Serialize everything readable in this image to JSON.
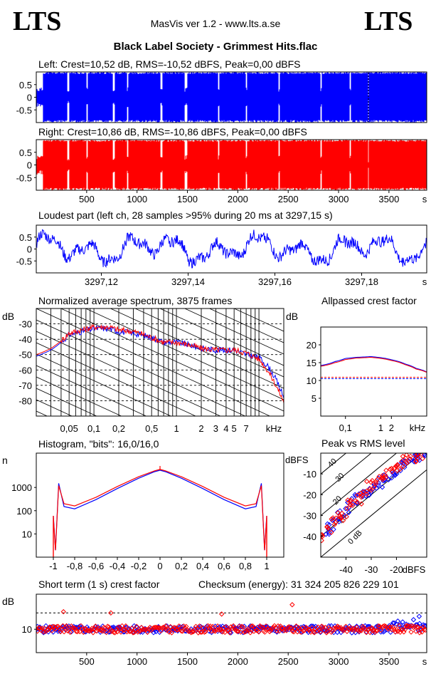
{
  "header": {
    "logo_left": "LTS",
    "logo_right": "LTS",
    "app_title": "MasVis ver 1.2 - www.lts.a.se",
    "file_title": "Black Label Society - Grimmest Hits.flac"
  },
  "colors": {
    "left": "#0000ff",
    "right": "#ff0000",
    "frame": "#000000"
  },
  "chart_data": [
    {
      "id": "waveform_left",
      "type": "area",
      "title": "Left: Crest=10,52 dB, RMS=-10,52 dBFS, Peak=0,00 dBFS",
      "series": [
        {
          "name": "Left",
          "color": "#0000ff"
        }
      ],
      "ylim": [
        -1,
        1
      ],
      "xlim": [
        0,
        3875
      ],
      "ytick_labels": [
        "0.5",
        "0",
        "-0.5"
      ],
      "ytick_values": [
        0.5,
        0,
        -0.5
      ]
    },
    {
      "id": "waveform_right",
      "type": "area",
      "title": "Right: Crest=10,86 dB, RMS=-10,86 dBFS, Peak=0,00 dBFS",
      "series": [
        {
          "name": "Right",
          "color": "#ff0000"
        }
      ],
      "ylim": [
        -1,
        1
      ],
      "xlim": [
        0,
        3875
      ],
      "ytick_labels": [
        "0.5",
        "0",
        "-0.5"
      ],
      "ytick_values": [
        0.5,
        0,
        -0.5
      ],
      "xtick_labels": [
        "500",
        "1000",
        "1500",
        "2000",
        "2500",
        "3000",
        "3500",
        "s"
      ],
      "xtick_values": [
        500,
        1000,
        1500,
        2000,
        2500,
        3000,
        3500
      ]
    },
    {
      "id": "loudest_part",
      "type": "line",
      "title": "Loudest part (left  ch, 28 samples >95% during 20 ms at 3297,15 s)",
      "ylim": [
        -1,
        1
      ],
      "xlim": [
        3297.105,
        3297.195
      ],
      "ytick_labels": [
        "0.5",
        "0",
        "-0.5"
      ],
      "ytick_values": [
        0.5,
        0,
        -0.5
      ],
      "xtick_labels": [
        "3297,12",
        "3297,14",
        "3297,16",
        "3297,18",
        "s"
      ],
      "xtick_values": [
        3297.12,
        3297.14,
        3297.16,
        3297.18
      ]
    },
    {
      "id": "spectrum",
      "type": "line",
      "title": "Normalized average spectrum, 3875 frames",
      "ylabel": "dB",
      "ylim": [
        -90,
        -20
      ],
      "ytick_labels": [
        "-30",
        "-40",
        "-50",
        "-60",
        "-70",
        "-80"
      ],
      "ytick_values": [
        -30,
        -40,
        -50,
        -60,
        -70,
        -80
      ],
      "xtick_labels": [
        "0,05",
        "0,1",
        "0,2",
        "0,5",
        "1",
        "2",
        "3",
        "4",
        "5",
        "7",
        "kHz"
      ],
      "xtick_values": [
        0.05,
        0.1,
        0.2,
        0.5,
        1,
        2,
        3,
        4,
        5,
        7
      ],
      "x": [
        0.02,
        0.03,
        0.05,
        0.07,
        0.1,
        0.15,
        0.2,
        0.3,
        0.5,
        0.7,
        1,
        1.5,
        2,
        3,
        5,
        7,
        10,
        13,
        16,
        20
      ],
      "series": [
        {
          "name": "Left",
          "color": "#0000ff",
          "values": [
            -51,
            -47,
            -37,
            -35,
            -33,
            -33,
            -35,
            -36,
            -39,
            -42,
            -42,
            -44,
            -46,
            -47,
            -47,
            -50,
            -52,
            -58,
            -66,
            -78
          ]
        },
        {
          "name": "Right",
          "color": "#ff0000",
          "values": [
            -50,
            -46,
            -36,
            -34,
            -32,
            -32,
            -34,
            -35,
            -39,
            -42,
            -42,
            -44,
            -46,
            -47,
            -47,
            -49,
            -53,
            -61,
            -70,
            -81
          ]
        }
      ]
    },
    {
      "id": "allpassed_crest",
      "type": "line",
      "title": "Allpassed crest factor",
      "ylabel": "dB",
      "ylim": [
        0,
        25
      ],
      "ytick_labels": [
        "20",
        "15",
        "10",
        "5"
      ],
      "ytick_values": [
        20,
        15,
        10,
        5
      ],
      "xtick_labels": [
        "0,1",
        "1",
        "2",
        "kHz"
      ],
      "xtick_values": [
        0.1,
        1,
        2
      ],
      "x": [
        0.02,
        0.05,
        0.1,
        0.2,
        0.5,
        1,
        2,
        5,
        10,
        20
      ],
      "series": [
        {
          "name": "Left",
          "color": "#0000ff",
          "values": [
            14.2,
            15.3,
            16.2,
            16.5,
            16.7,
            16.4,
            15.8,
            14.6,
            13.4,
            12.4
          ]
        },
        {
          "name": "Right",
          "color": "#ff0000",
          "values": [
            14.0,
            15.0,
            15.9,
            16.3,
            16.5,
            16.2,
            15.6,
            14.4,
            13.2,
            12.3
          ]
        }
      ],
      "reference_lines": [
        10.5,
        10.9
      ]
    },
    {
      "id": "histogram",
      "type": "line",
      "title": "Histogram, \"bits\": 16,0/16,0",
      "ylabel": "n",
      "ylim": [
        1,
        30000
      ],
      "log_y": true,
      "ytick_labels": [
        "1000",
        "100",
        "10"
      ],
      "ytick_values": [
        1000,
        100,
        10
      ],
      "xtick_labels": [
        "-1",
        "-0,8",
        "-0,6",
        "-0,4",
        "-0,2",
        "0",
        "0,2",
        "0,4",
        "0,6",
        "0,8",
        "1"
      ],
      "xtick_values": [
        -1,
        -0.8,
        -0.6,
        -0.4,
        -0.2,
        0,
        0.2,
        0.4,
        0.6,
        0.8,
        1
      ],
      "x": [
        -1,
        -0.98,
        -0.95,
        -0.9,
        -0.8,
        -0.6,
        -0.4,
        -0.2,
        -0.05,
        0,
        0.05,
        0.2,
        0.4,
        0.6,
        0.8,
        0.9,
        0.95,
        0.98,
        1
      ],
      "series": [
        {
          "name": "Left",
          "color": "#0000ff",
          "values": [
            60,
            2,
            1500,
            150,
            120,
            300,
            900,
            2500,
            4800,
            5500,
            4800,
            2500,
            900,
            300,
            120,
            150,
            1500,
            2,
            60
          ]
        },
        {
          "name": "Right",
          "color": "#ff0000",
          "values": [
            50,
            2,
            1200,
            200,
            160,
            380,
            1100,
            2900,
            5200,
            6000,
            5200,
            2900,
            1100,
            380,
            160,
            200,
            1200,
            2,
            50
          ]
        }
      ]
    },
    {
      "id": "peak_vs_rms",
      "type": "scatter",
      "title": "Peak vs RMS level",
      "ylabel": "dBFS",
      "xlabel": "dBFS",
      "xlim": [
        -50,
        -8
      ],
      "ylim": [
        -50,
        0
      ],
      "ytick_labels": [
        "-10",
        "-20",
        "-30",
        "-40"
      ],
      "ytick_values": [
        -10,
        -20,
        -30,
        -40
      ],
      "xtick_labels": [
        "-40",
        "-30",
        "-20",
        "dBFS"
      ],
      "xtick_values": [
        -40,
        -30,
        -20
      ],
      "diagonal_labels": [
        "40",
        "30",
        "20",
        "10",
        "0 dB"
      ],
      "series": [
        {
          "name": "Left",
          "color": "#0000ff",
          "x": [
            -48,
            -46,
            -44,
            -42,
            -40,
            -38,
            -36,
            -34,
            -32,
            -30,
            -28,
            -26,
            -24,
            -22,
            -20,
            -18,
            -16,
            -14,
            -12,
            -10
          ],
          "y": [
            -38,
            -36,
            -31,
            -30,
            -28,
            -24,
            -22,
            -20,
            -21,
            -17,
            -15,
            -14,
            -12,
            -10,
            -8,
            -6,
            -5,
            -3,
            -2,
            -1
          ]
        },
        {
          "name": "Right",
          "color": "#ff0000",
          "x": [
            -49,
            -47,
            -45,
            -43,
            -41,
            -39,
            -37,
            -35,
            -33,
            -31,
            -29,
            -27,
            -25,
            -23,
            -21,
            -19,
            -17,
            -15,
            -13,
            -11
          ],
          "y": [
            -40,
            -37,
            -33,
            -31,
            -30,
            -25,
            -23,
            -22,
            -19,
            -16,
            -14,
            -13,
            -11,
            -9,
            -7,
            -6,
            -4,
            -3,
            -2,
            -1
          ]
        }
      ]
    },
    {
      "id": "short_term_crest",
      "type": "scatter",
      "title": "Short term (1 s) crest factor",
      "checksum": "Checksum (energy):  31 324 205 826 229 101",
      "ylabel": "dB",
      "ylim": [
        0,
        25
      ],
      "xlim": [
        0,
        3875
      ],
      "ytick_labels": [
        "10"
      ],
      "ytick_values": [
        10
      ],
      "reference_line": 17,
      "xtick_labels": [
        "500",
        "1000",
        "1500",
        "2000",
        "2500",
        "3000",
        "3500",
        "s"
      ],
      "xtick_values": [
        500,
        1000,
        1500,
        2000,
        2500,
        3000,
        3500
      ],
      "outliers": [
        {
          "x": 270,
          "y": 17.5,
          "series": "Right"
        },
        {
          "x": 740,
          "y": 17,
          "series": "Right"
        },
        {
          "x": 1840,
          "y": 16.5,
          "series": "Right"
        },
        {
          "x": 2540,
          "y": 20.5,
          "series": "Right"
        },
        {
          "x": 3800,
          "y": 15.5,
          "series": "Left"
        }
      ]
    }
  ]
}
